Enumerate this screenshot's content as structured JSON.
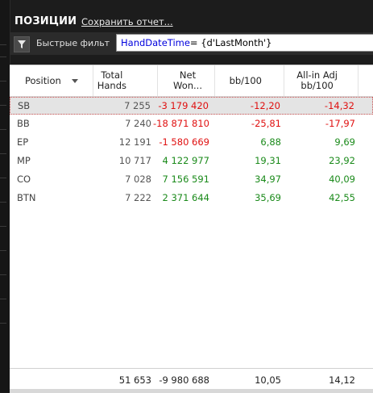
{
  "header": {
    "title": "ПОЗИЦИИ",
    "save_report": "Сохранить отчет..."
  },
  "filter": {
    "label": "Быстрые фильт",
    "query_field": "HandDateTime",
    "query_rest": "= {d'LastMonth'}"
  },
  "table": {
    "columns": [
      {
        "l1": "Position",
        "l2": ""
      },
      {
        "l1": "Total",
        "l2": "Hands"
      },
      {
        "l1": "Net",
        "l2": "Won..."
      },
      {
        "l1": "bb/100",
        "l2": ""
      },
      {
        "l1": "All-in Adj",
        "l2": "bb/100"
      }
    ],
    "rows": [
      {
        "position": "SB",
        "hands": "7 255",
        "net": "-3 179 420",
        "bb": "-12,20",
        "adj": "-14,32"
      },
      {
        "position": "BB",
        "hands": "7 240",
        "net": "-18 871 810",
        "bb": "-25,81",
        "adj": "-17,97"
      },
      {
        "position": "EP",
        "hands": "12 191",
        "net": "-1 580 669",
        "bb": "6,88",
        "adj": "9,69"
      },
      {
        "position": "MP",
        "hands": "10 717",
        "net": "4 122 977",
        "bb": "19,31",
        "adj": "23,92"
      },
      {
        "position": "CO",
        "hands": "7 028",
        "net": "7 156 591",
        "bb": "34,97",
        "adj": "40,09"
      },
      {
        "position": "BTN",
        "hands": "7 222",
        "net": "2 371 644",
        "bb": "35,69",
        "adj": "42,55"
      }
    ],
    "totals": {
      "hands": "51 653",
      "net": "-9 980 688",
      "bb": "10,05",
      "adj": "14,12"
    }
  },
  "colors": {
    "negative": "#e01010",
    "positive": "#1a8a1a",
    "query_field": "#0000dd"
  },
  "icons": {
    "filter": "funnel-icon",
    "sort": "sort-down-icon"
  }
}
